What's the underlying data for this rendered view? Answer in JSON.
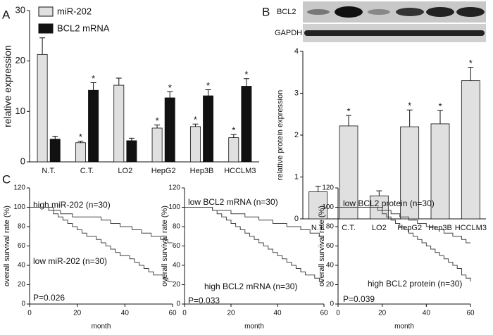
{
  "chart_data": [
    {
      "type": "bar",
      "panel": "A",
      "ylabel": "relative expression",
      "categories": [
        "N.T.",
        "C.T.",
        "LO2",
        "HepG2",
        "Hep3B",
        "HCCLM3"
      ],
      "series": [
        {
          "name": "miR-202",
          "color": "#e0e0e0",
          "values": [
            21.3,
            3.8,
            15.2,
            6.7,
            7.0,
            4.8
          ],
          "errors": [
            3.3,
            0.3,
            1.4,
            0.6,
            0.5,
            0.6
          ],
          "markers": [
            null,
            "*",
            null,
            "*",
            "*",
            "*"
          ]
        },
        {
          "name": "BCL2 mRNA",
          "color": "#111111",
          "values": [
            4.5,
            14.2,
            4.2,
            12.7,
            13.1,
            15.0
          ],
          "errors": [
            0.6,
            1.5,
            0.5,
            1.2,
            1.2,
            1.5
          ],
          "markers": [
            null,
            "*",
            null,
            "*",
            "*",
            "*"
          ]
        }
      ],
      "ylim": [
        0,
        30
      ],
      "yticks": [
        0,
        10,
        20,
        30
      ]
    },
    {
      "type": "bar",
      "panel": "B",
      "ylabel": "relative protein expression",
      "blot_labels": [
        "BCL2",
        "GAPDH"
      ],
      "categories": [
        "N.T.",
        "C.T.",
        "LO2",
        "HepG2",
        "Hep3B",
        "HCCLM3"
      ],
      "series": [
        {
          "color": "#e0e0e0",
          "values": [
            0.65,
            2.22,
            0.55,
            2.2,
            2.27,
            3.3
          ],
          "errors": [
            0.13,
            0.25,
            0.12,
            0.4,
            0.32,
            0.32
          ],
          "markers": [
            null,
            "*",
            null,
            "*",
            "*",
            "*"
          ]
        }
      ],
      "ylim": [
        0,
        4
      ],
      "yticks": [
        0,
        1,
        2,
        3,
        4
      ]
    },
    {
      "type": "step",
      "panel": "C",
      "ylabel": "overall survival rate (%)",
      "xlabel": "month",
      "p_value": "P=0.026",
      "series": [
        {
          "name": "high miR-202 (n=30)",
          "color": "#444444",
          "x": [
            0,
            10,
            13,
            18,
            24,
            30,
            34,
            38,
            43,
            47,
            51,
            55,
            58,
            60
          ],
          "values": [
            100,
            96.7,
            93.3,
            90,
            90,
            86.7,
            83.3,
            80,
            76.7,
            73.3,
            70,
            66.7,
            63.3,
            63.3
          ]
        },
        {
          "name": "low miR-202 (n=30)",
          "color": "#444444",
          "x": [
            0,
            8,
            10,
            12,
            14,
            16,
            18,
            20,
            22,
            24,
            26,
            28,
            30,
            32,
            34,
            36,
            38,
            40,
            42,
            44,
            46,
            48,
            50,
            52,
            54,
            56,
            58,
            60
          ],
          "values": [
            100,
            96.7,
            93.3,
            90,
            86.7,
            83.3,
            80,
            76.7,
            73.3,
            70,
            70,
            66.7,
            63.3,
            60,
            56.7,
            53.3,
            50,
            50,
            46.7,
            43.3,
            40,
            36.7,
            33.3,
            30,
            30,
            26.7,
            23.3,
            23.3
          ]
        }
      ],
      "xlim": [
        0,
        60
      ],
      "xticks": [
        0,
        20,
        40,
        60
      ],
      "ylim": [
        0,
        120
      ],
      "yticks": [
        0,
        20,
        40,
        60,
        80,
        100,
        120
      ]
    },
    {
      "type": "step",
      "ylabel": "overall survival rate (%)",
      "xlabel": "month",
      "p_value": "P=0.033",
      "series": [
        {
          "name": "low BCL2 mRNA (n=30)",
          "color": "#444444",
          "x": [
            0,
            12,
            20,
            26,
            32,
            38,
            44,
            50,
            54,
            58,
            60
          ],
          "values": [
            100,
            96.7,
            93.3,
            90,
            86.7,
            83.3,
            80,
            76.7,
            73.3,
            70,
            70
          ]
        },
        {
          "name": "high BCL2 mRNA (n=30)",
          "color": "#444444",
          "x": [
            0,
            12,
            14,
            16,
            18,
            20,
            22,
            24,
            26,
            28,
            30,
            32,
            34,
            36,
            38,
            40,
            42,
            44,
            46,
            48,
            50,
            52,
            54,
            56,
            58,
            60
          ],
          "values": [
            100,
            96.7,
            93.3,
            90,
            86.7,
            83.3,
            80,
            76.7,
            73.3,
            70,
            66.7,
            63.3,
            60,
            56.7,
            53.3,
            50,
            46.7,
            43.3,
            40,
            36.7,
            33.3,
            30,
            30,
            26.7,
            23.3,
            23.3
          ]
        }
      ],
      "xlim": [
        0,
        60
      ],
      "xticks": [
        0,
        20,
        40,
        60
      ],
      "ylim": [
        0,
        120
      ],
      "yticks": [
        0,
        20,
        40,
        60,
        80,
        100,
        120
      ]
    },
    {
      "type": "step",
      "ylabel": "overall survival rate (%)",
      "xlabel": "month",
      "p_value": "P=0.039",
      "series": [
        {
          "name": "low BCL2 protein (n=30)",
          "color": "#444444",
          "x": [
            0,
            20,
            24,
            28,
            32,
            36,
            40,
            44,
            48,
            52,
            56,
            58,
            60
          ],
          "values": [
            100,
            96.7,
            93.3,
            90,
            86.7,
            83.3,
            80,
            76.7,
            73.3,
            70,
            66.7,
            63.3,
            63.3
          ]
        },
        {
          "name": "high BCL2 protein (n=30)",
          "color": "#444444",
          "x": [
            0,
            18,
            20,
            22,
            24,
            26,
            28,
            30,
            32,
            34,
            36,
            38,
            40,
            42,
            44,
            46,
            48,
            50,
            52,
            54,
            56,
            58,
            60
          ],
          "values": [
            100,
            96.7,
            93.3,
            90,
            86.7,
            83.3,
            80,
            76.7,
            73.3,
            70,
            66.7,
            63.3,
            60,
            56.7,
            53.3,
            50,
            46.7,
            43.3,
            40,
            36.7,
            30,
            26.7,
            23.3
          ]
        }
      ],
      "xlim": [
        0,
        60
      ],
      "xticks": [
        0,
        20,
        40,
        60
      ],
      "ylim": [
        0,
        120
      ],
      "yticks": [
        0,
        20,
        40,
        60,
        80,
        100,
        120
      ]
    }
  ]
}
